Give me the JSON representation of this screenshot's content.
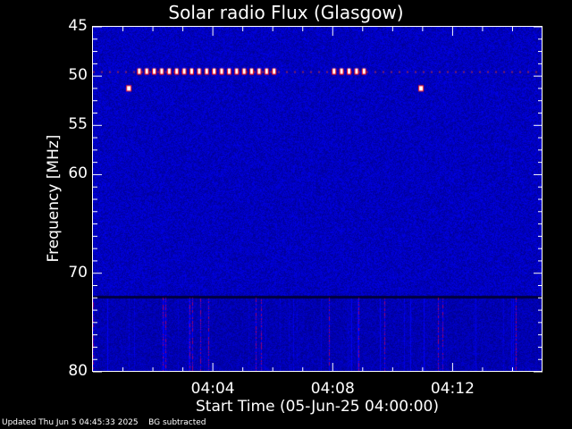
{
  "chart_data": {
    "type": "heatmap",
    "title": "Solar radio Flux (Glasgow)",
    "xlabel": "Start Time (05-Jun-25 04:00:00)",
    "ylabel": "Frequency [MHz]",
    "xlim": [
      "04:00",
      "04:15"
    ],
    "ylim": [
      45,
      80
    ],
    "y_inverted": true,
    "x_ticks": [
      "04:04",
      "04:08",
      "04:12"
    ],
    "y_ticks": [
      45,
      50,
      55,
      60,
      70,
      80
    ],
    "colormap": [
      "#000080",
      "#0000ff",
      "#ff0000",
      "#ffff00",
      "#ffffff"
    ],
    "background_color": "#00009a",
    "features": [
      {
        "description": "intermittent bright interference",
        "freq_mhz": 49.5,
        "time_start": "04:01:30",
        "time_end": "04:06:00"
      },
      {
        "description": "intermittent bright interference",
        "freq_mhz": 49.5,
        "time_start": "04:08:00",
        "time_end": "04:09:00"
      },
      {
        "description": "bright spot",
        "freq_mhz": 51.2,
        "time": "04:01:10"
      },
      {
        "description": "bright spot",
        "freq_mhz": 51.2,
        "time": "04:10:55"
      }
    ]
  },
  "footer": {
    "updated": "Updated Thu Jun  5 04:45:33 2025",
    "note": "BG subtracted"
  }
}
